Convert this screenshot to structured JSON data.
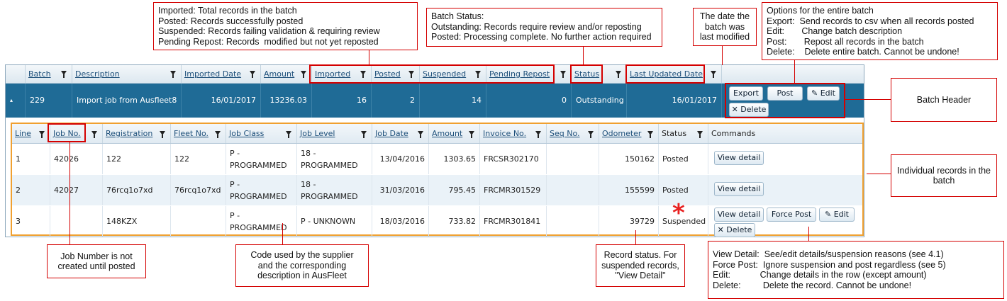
{
  "callouts": {
    "imported_legend": [
      "Imported: Total records in the batch",
      "Posted: Records successfully posted",
      "Suspended: Records failing validation & requiring review",
      "Pending Repost: Records  modified but not yet reposted"
    ],
    "batch_status": [
      "Batch Status:",
      "Outstanding: Records require review and/or reposting",
      "Posted: Processing complete. No further action required"
    ],
    "date_modified": [
      "The date the",
      "batch was",
      "last modified"
    ],
    "options": [
      "Options for the entire batch",
      "Export:  Send records to csv when all records posted",
      "Edit:       Change batch description",
      "Post:       Repost all records in the batch",
      "Delete:    Delete entire batch. Cannot be undone!"
    ],
    "batch_header": "Batch Header",
    "individual_records": [
      "Individual records in the",
      "batch"
    ],
    "job_number": [
      "Job Number is not",
      "created until posted"
    ],
    "code_used": [
      "Code used by the supplier",
      "and the corresponding",
      "description in AusFleet"
    ],
    "record_status": [
      "Record status. For",
      "suspended records,",
      "\"View Detail\""
    ],
    "commands": [
      "View Detail:  See/edit details/suspension reasons (see 4.1)",
      "Force Post:  Ignore suspension and post regardless (see 5)",
      "Edit:            Change details in the row (except amount)",
      "Delete:         Delete the record. Cannot be undone!"
    ]
  },
  "batch_grid": {
    "headers": [
      "Batch",
      "Description",
      "Imported Date",
      "Amount",
      "Imported",
      "Posted",
      "Suspended",
      "Pending Repost",
      "Status",
      "Last Updated Date"
    ],
    "row": {
      "expand": "▴",
      "batch": "229",
      "description": "Import job from Ausfleet8",
      "imported_date": "16/01/2017",
      "amount": "13236.03",
      "imported": "16",
      "posted": "2",
      "suspended": "14",
      "pending_repost": "0",
      "status": "Outstanding",
      "last_updated": "16/01/2017"
    },
    "buttons": {
      "export": "Export",
      "post": "Post",
      "edit": "✎ Edit",
      "delete": "✕ Delete"
    }
  },
  "records_grid": {
    "headers": [
      "Line",
      "Job No.",
      "Registration",
      "Fleet No.",
      "Job Class",
      "Job Level",
      "Job Date",
      "Amount",
      "Invoice No.",
      "Seq No.",
      "Odometer",
      "Status",
      "Commands"
    ],
    "rows": [
      {
        "line": "1",
        "job_no": "42026",
        "registration": "122",
        "fleet_no": "122",
        "job_class": [
          "P -",
          "PROGRAMMED"
        ],
        "job_level": [
          "18 -",
          "PROGRAMMED"
        ],
        "job_date": "13/04/2016",
        "amount": "1303.65",
        "invoice": "FRCSR302170",
        "seq": "",
        "odometer": "150162",
        "status": "Posted"
      },
      {
        "line": "2",
        "job_no": "42027",
        "registration": "76rcq1o7xd",
        "fleet_no": "76rcq1o7xd",
        "job_class": [
          "P -",
          "PROGRAMMED"
        ],
        "job_level": [
          "18 -",
          "PROGRAMMED"
        ],
        "job_date": "31/03/2016",
        "amount": "795.45",
        "invoice": "FRCMR301529",
        "seq": "",
        "odometer": "155599",
        "status": "Posted"
      },
      {
        "line": "3",
        "job_no": "",
        "registration": "148KZX",
        "fleet_no": "",
        "job_class": [
          "P -",
          "PROGRAMMED"
        ],
        "job_level": [
          "P - UNKNOWN"
        ],
        "job_date": "18/03/2016",
        "amount": "733.82",
        "invoice": "FRCMR301841",
        "seq": "",
        "odometer": "39729",
        "status": "Suspended"
      }
    ],
    "buttons": {
      "view_detail": "View detail",
      "force_post": "Force Post",
      "edit": "✎ Edit",
      "delete": "✕ Delete"
    }
  },
  "star": "*",
  "colors": {
    "header_row": "#1f6b96",
    "callout_border": "#d40000",
    "inner_border": "#f0a030"
  }
}
